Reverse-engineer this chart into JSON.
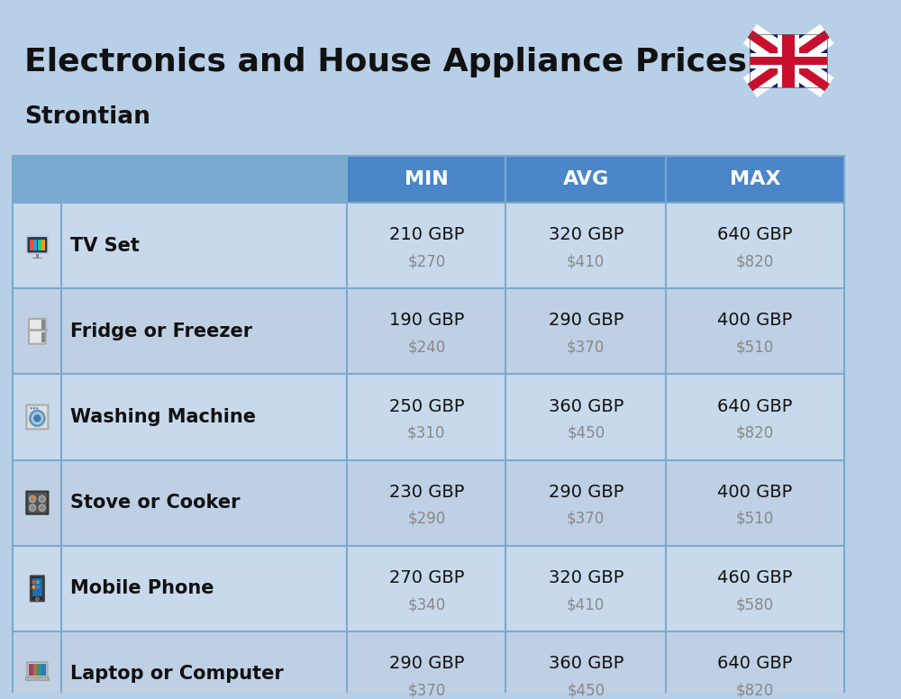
{
  "title": "Electronics and House Appliance Prices",
  "subtitle": "Strontian",
  "bg_color": "#b8cfe8",
  "header_color": "#4a86c8",
  "header_text_color": "#ffffff",
  "col_divider_color": "#7aaace",
  "items": [
    {
      "name": "TV Set",
      "min_gbp": "210 GBP",
      "min_usd": "$270",
      "avg_gbp": "320 GBP",
      "avg_usd": "$410",
      "max_gbp": "640 GBP",
      "max_usd": "$820"
    },
    {
      "name": "Fridge or Freezer",
      "min_gbp": "190 GBP",
      "min_usd": "$240",
      "avg_gbp": "290 GBP",
      "avg_usd": "$370",
      "max_gbp": "400 GBP",
      "max_usd": "$510"
    },
    {
      "name": "Washing Machine",
      "min_gbp": "250 GBP",
      "min_usd": "$310",
      "avg_gbp": "360 GBP",
      "avg_usd": "$450",
      "max_gbp": "640 GBP",
      "max_usd": "$820"
    },
    {
      "name": "Stove or Cooker",
      "min_gbp": "230 GBP",
      "min_usd": "$290",
      "avg_gbp": "290 GBP",
      "avg_usd": "$370",
      "max_gbp": "400 GBP",
      "max_usd": "$510"
    },
    {
      "name": "Mobile Phone",
      "min_gbp": "270 GBP",
      "min_usd": "$340",
      "avg_gbp": "320 GBP",
      "avg_usd": "$410",
      "max_gbp": "460 GBP",
      "max_usd": "$580"
    },
    {
      "name": "Laptop or Computer",
      "min_gbp": "290 GBP",
      "min_usd": "$370",
      "avg_gbp": "360 GBP",
      "avg_usd": "$450",
      "max_gbp": "640 GBP",
      "max_usd": "$820"
    }
  ]
}
